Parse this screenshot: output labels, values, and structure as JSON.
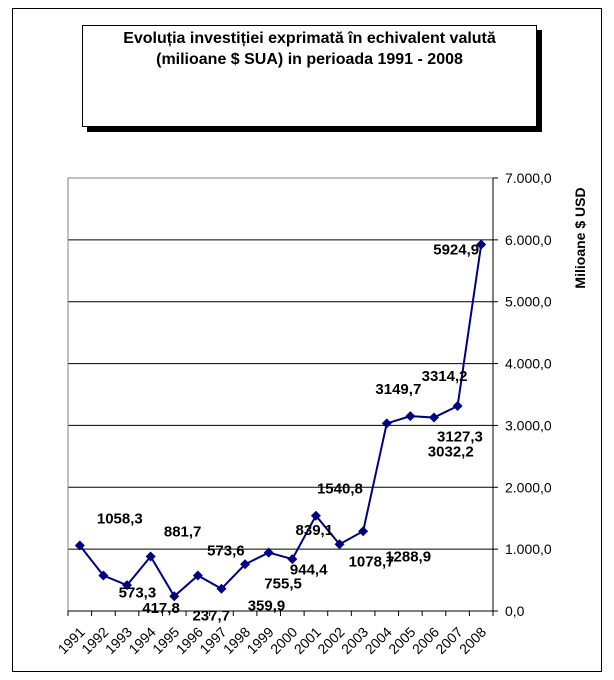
{
  "chart_data": {
    "type": "line",
    "title": "Evoluția investiției exprimată în echivalent valută (milioane $ SUA) in perioada 1991 - 2008",
    "title_lines": [
      "Evoluția investiției exprimată în echivalent valută",
      "(milioane $ SUA) in perioada 1991 - 2008"
    ],
    "xlabel": "",
    "ylabel": "Milioane $ USD",
    "ylim": [
      0,
      7000
    ],
    "y_ticks": [
      0,
      1000,
      2000,
      3000,
      4000,
      5000,
      6000,
      7000
    ],
    "y_tick_labels": [
      "0,0",
      "1.000,0",
      "2.000,0",
      "3.000,0",
      "4.000,0",
      "5.000,0",
      "6.000,0",
      "7.000,0"
    ],
    "y_axis_side": "right",
    "grid": true,
    "line_color": "#000080",
    "categories": [
      "1991",
      "1992",
      "1993",
      "1994",
      "1995",
      "1996",
      "1997",
      "1998",
      "1999",
      "2000",
      "2001",
      "2002",
      "2003",
      "2004",
      "2005",
      "2006",
      "2007",
      "2008"
    ],
    "values": [
      1058.3,
      573.3,
      417.8,
      881.7,
      237.7,
      573.6,
      359.9,
      755.5,
      944.4,
      839.1,
      1540.8,
      1078.7,
      1288.9,
      3032.2,
      3149.7,
      3127.3,
      3314.2,
      5924.9
    ],
    "data_labels": [
      "1058,3",
      "573,3",
      "417,8",
      "881,7",
      "237,7",
      "573,6",
      "359,9",
      "755,5",
      "944,4",
      "839,1",
      "1540,8",
      "1078,7",
      "1288,9",
      "3032,2",
      "3149,7",
      "3127,3",
      "3314,2",
      "5924,9"
    ]
  }
}
